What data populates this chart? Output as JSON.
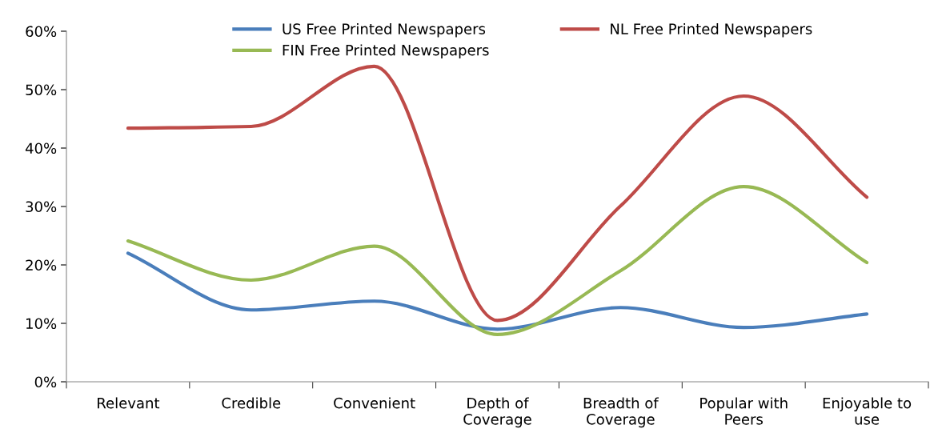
{
  "chart_data": {
    "type": "line",
    "categories": [
      "Relevant",
      "Credible",
      "Convenient",
      "Depth of\nCoverage",
      "Breadth of\nCoverage",
      "Popular with\nPeers",
      "Enjoyable to\nuse"
    ],
    "series": [
      {
        "name": "US Free Printed Newspapers",
        "color": "#4a7ebb",
        "values": [
          22.0,
          12.3,
          13.8,
          9.0,
          12.7,
          9.3,
          11.6
        ]
      },
      {
        "name": "NL Free Printed Newspapers",
        "color": "#be4b48",
        "values": [
          43.4,
          43.7,
          54.0,
          10.5,
          30.1,
          48.9,
          31.6
        ]
      },
      {
        "name": "FIN Free Printed Newspapers",
        "color": "#98b954",
        "values": [
          24.1,
          17.4,
          23.2,
          8.1,
          19.0,
          33.4,
          20.4
        ]
      }
    ],
    "ylim": [
      0,
      60
    ],
    "yticks": [
      {
        "value": 0,
        "label": "0%"
      },
      {
        "value": 10,
        "label": "10%"
      },
      {
        "value": 20,
        "label": "20%"
      },
      {
        "value": 30,
        "label": "30%"
      },
      {
        "value": 40,
        "label": "40%"
      },
      {
        "value": 50,
        "label": "50%"
      },
      {
        "value": 60,
        "label": "60%"
      }
    ],
    "grid": false,
    "legend": "top",
    "marker": "none",
    "line_style": "solid"
  }
}
